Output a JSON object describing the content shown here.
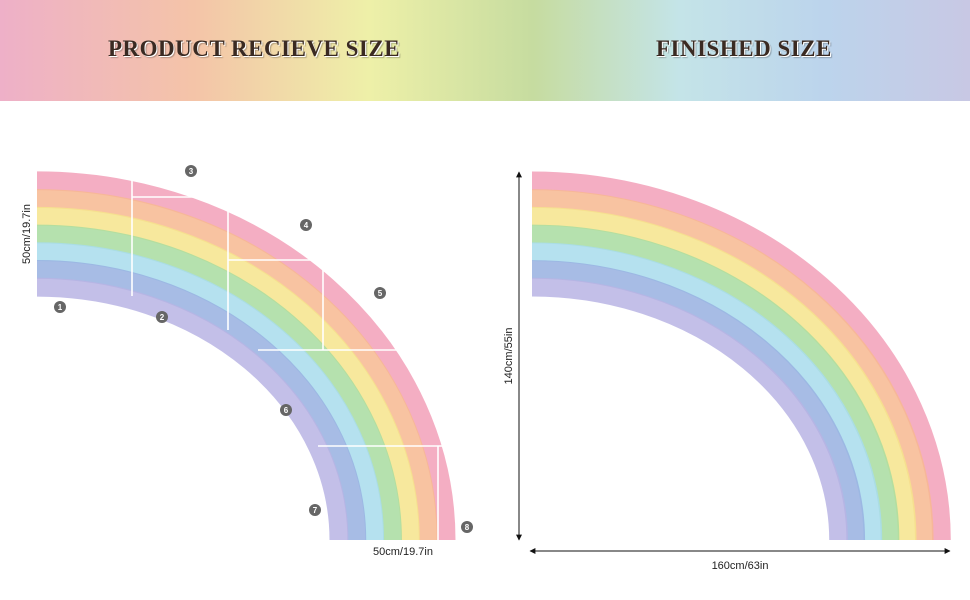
{
  "header": {
    "left_title": "PRODUCT RECIEVE SIZE",
    "right_title": "FINISHED SIZE"
  },
  "pieces": {
    "height_label": "50cm/19.7in",
    "width_label": "50cm/19.7in",
    "numbers": [
      "1",
      "2",
      "3",
      "4",
      "5",
      "6",
      "7",
      "8"
    ]
  },
  "finished": {
    "height_label": "140cm/55in",
    "width_label": "160cm/63in"
  }
}
